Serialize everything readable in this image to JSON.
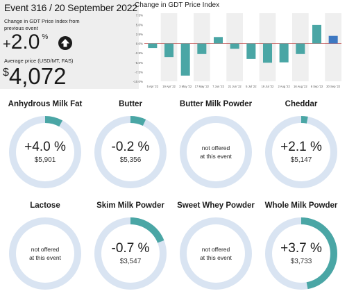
{
  "summary": {
    "event_title": "Event 316 / 20 September 2022",
    "change_label": "Change in GDT Price Index from previous event",
    "change_sign": "+",
    "change_value": "2.0",
    "change_unit": "%",
    "change_direction_icon": "arrow-up-icon",
    "price_label": "Average price (USD/MT, FAS)",
    "price_currency": "$",
    "price_value": "4,072"
  },
  "chart_data": {
    "type": "bar",
    "title": "Change in GDT Price Index",
    "ylim": [
      -10,
      8
    ],
    "yticks": [
      "7.5%",
      "5.0%",
      "2.5%",
      "0.0%",
      "-2.5%",
      "-5.0%",
      "-7.5%",
      "-10.0%"
    ],
    "xtick_labels": [
      "5 Apr '22",
      "19 Apr '22",
      "3 May '22",
      "17 May '22",
      "7 Jun '22",
      "21 Jun '22",
      "5 Jul '22",
      "19 Jul '22",
      "2 Aug '22",
      "16 Aug '22",
      "6 Sep '22",
      "20 Sep '22"
    ],
    "categories": [
      "5 Apr '22",
      "19 Apr '22",
      "3 May '22",
      "17 May '22",
      "7 Jun '22",
      "21 Jun '22",
      "5 Jul '22",
      "19 Jul '22",
      "2 Aug '22",
      "16 Aug '22",
      "6 Sep '22",
      "20 Sep '22"
    ],
    "values": [
      -1.2,
      -3.6,
      -8.5,
      -2.8,
      1.7,
      -1.4,
      -4.1,
      -5.1,
      -5.0,
      -2.8,
      4.9,
      2.0
    ],
    "colors": {
      "positive": "#4aa6a5",
      "negative": "#4aa6a5",
      "latest": "#3d78c2",
      "stripe": "#efefef",
      "zero": "#b02020"
    }
  },
  "products": [
    {
      "name": "Anhydrous Milk Fat",
      "change": "+4.0 %",
      "price": "$5,901",
      "fraction": 0.08,
      "offered": true
    },
    {
      "name": "Butter",
      "change": "-0.2 %",
      "price": "$5,356",
      "fraction": 0.07,
      "offered": true
    },
    {
      "name": "Butter Milk Powder",
      "offered": false,
      "not_offered_line1": "not offered",
      "not_offered_line2": "at this event"
    },
    {
      "name": "Cheddar",
      "change": "+2.1 %",
      "price": "$5,147",
      "fraction": 0.03,
      "offered": true
    },
    {
      "name": "Lactose",
      "offered": false,
      "not_offered_line1": "not offered",
      "not_offered_line2": "at this event"
    },
    {
      "name": "Skim Milk Powder",
      "change": "-0.7 %",
      "price": "$3,547",
      "fraction": 0.19,
      "offered": true
    },
    {
      "name": "Sweet Whey Powder",
      "offered": false,
      "not_offered_line1": "not offered",
      "not_offered_line2": "at this event"
    },
    {
      "name": "Whole Milk Powder",
      "change": "+3.7 %",
      "price": "$3,733",
      "fraction": 0.47,
      "offered": true
    }
  ],
  "ring_colors": {
    "track": "#d9e4f2",
    "fill": "#4aa6a5"
  }
}
